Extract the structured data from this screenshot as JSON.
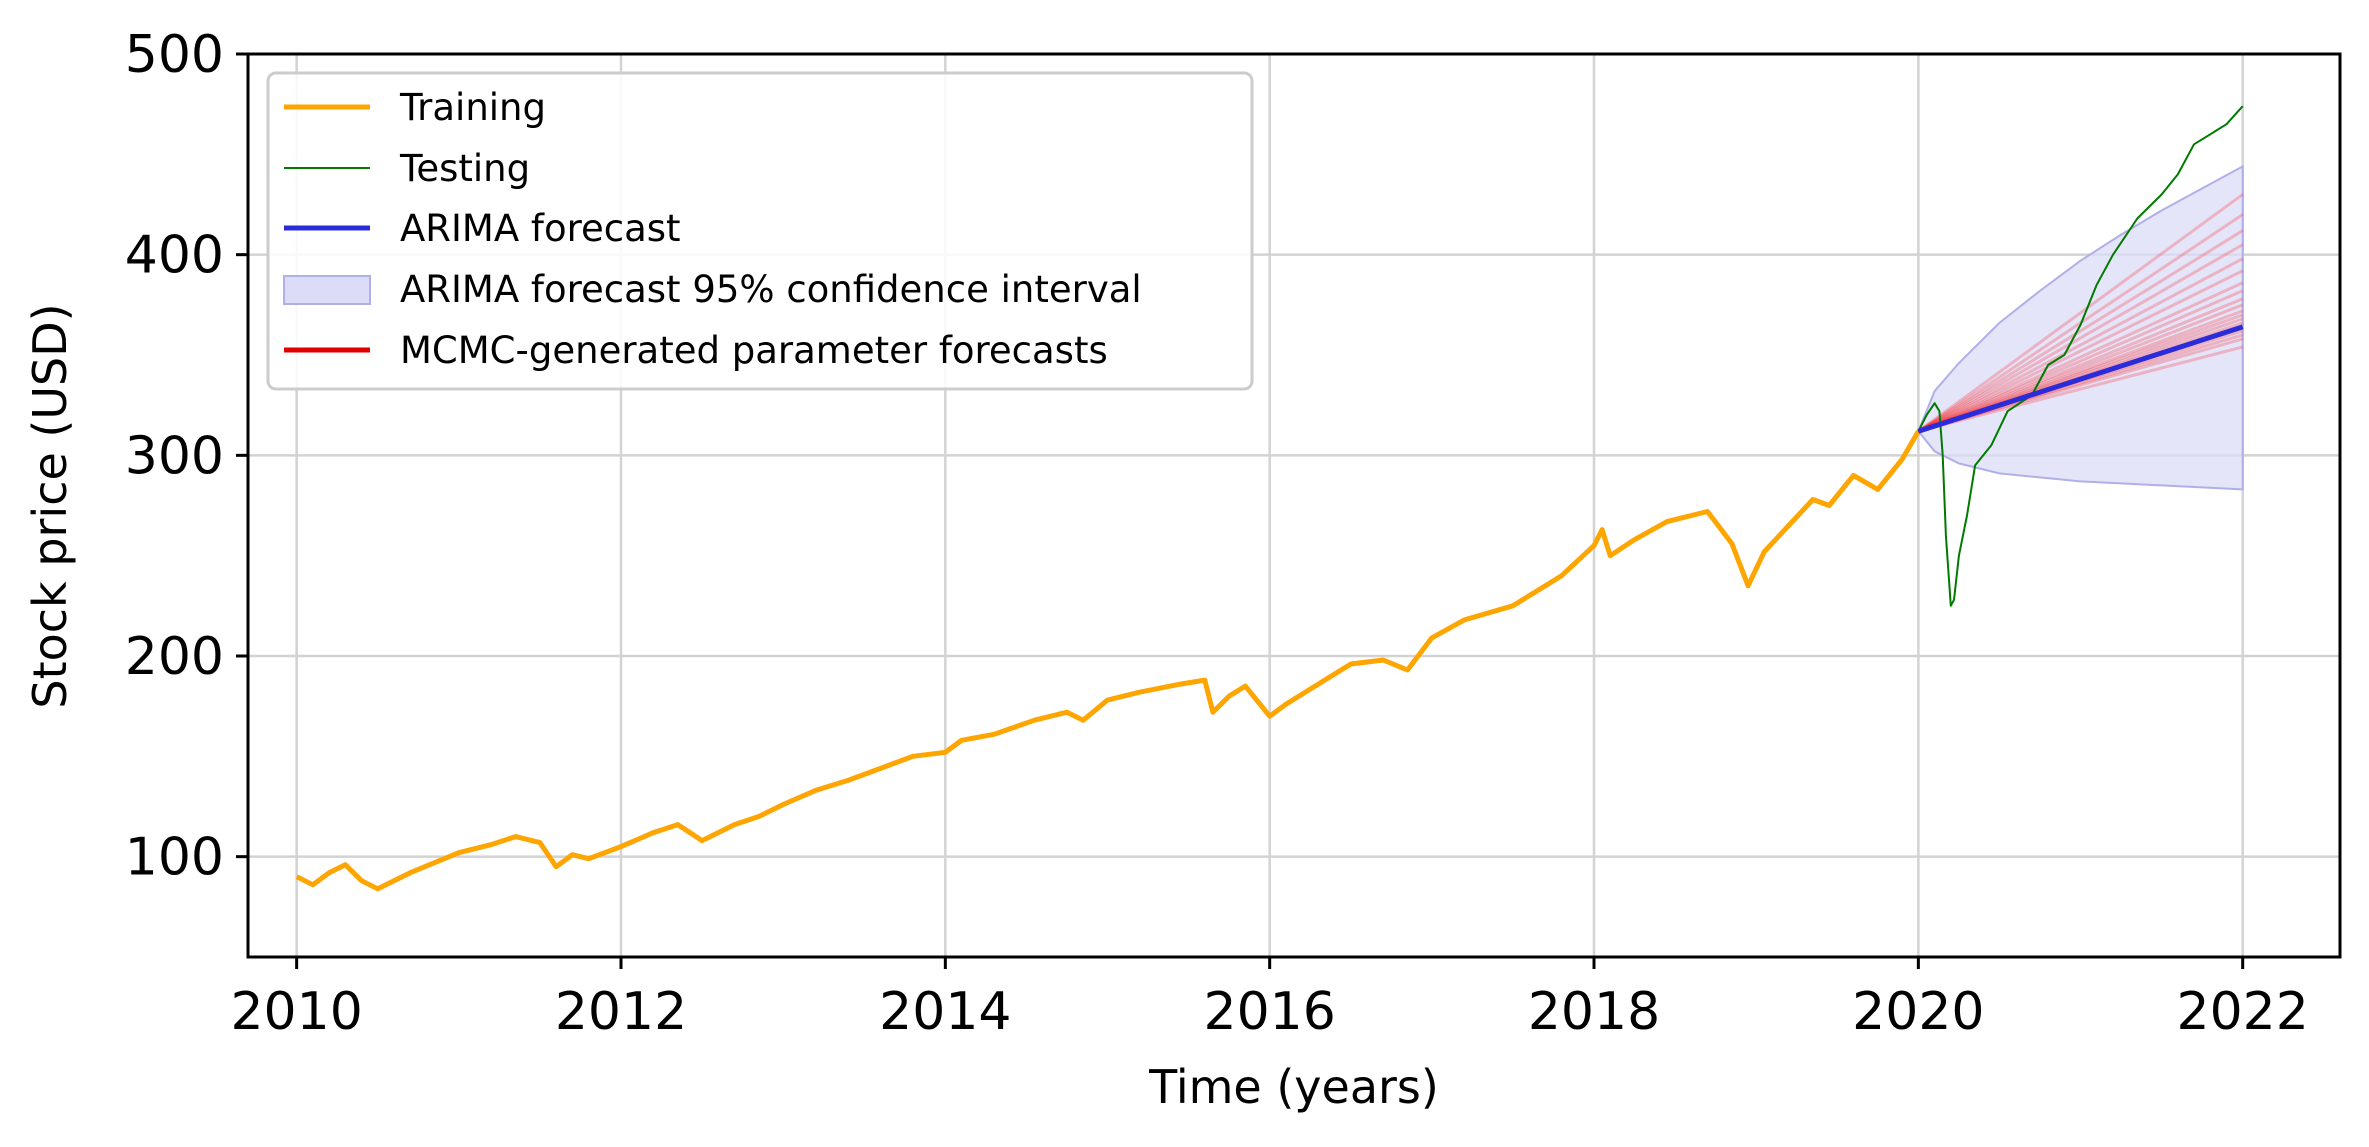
{
  "chart_data": {
    "type": "line",
    "title": "",
    "xlabel": "Time (years)",
    "ylabel": "Stock price (USD)",
    "xlim": [
      2009.7,
      2022.6
    ],
    "ylim": [
      50,
      500
    ],
    "xticks": [
      2010,
      2012,
      2014,
      2016,
      2018,
      2020,
      2022
    ],
    "yticks": [
      100,
      200,
      300,
      400,
      500
    ],
    "grid": true,
    "legend_position": "upper-left",
    "colors": {
      "training": "#ffa500",
      "testing": "#007a00",
      "arima": "#2b2bd9",
      "ci_fill": "#dcdcf7",
      "ci_edge": "#b0b0e8",
      "mcmc": "#ff0000"
    },
    "series": [
      {
        "name": "Training",
        "x": [
          2010.0,
          2010.1,
          2010.2,
          2010.3,
          2010.4,
          2010.5,
          2010.6,
          2010.7,
          2010.85,
          2011.0,
          2011.2,
          2011.35,
          2011.5,
          2011.6,
          2011.7,
          2011.8,
          2012.0,
          2012.2,
          2012.35,
          2012.5,
          2012.7,
          2012.85,
          2013.0,
          2013.2,
          2013.4,
          2013.6,
          2013.8,
          2014.0,
          2014.1,
          2014.3,
          2014.55,
          2014.75,
          2014.85,
          2015.0,
          2015.2,
          2015.45,
          2015.6,
          2015.65,
          2015.75,
          2015.85,
          2016.0,
          2016.1,
          2016.3,
          2016.5,
          2016.7,
          2016.85,
          2017.0,
          2017.2,
          2017.5,
          2017.8,
          2018.0,
          2018.05,
          2018.1,
          2018.25,
          2018.45,
          2018.7,
          2018.85,
          2018.95,
          2019.05,
          2019.2,
          2019.35,
          2019.45,
          2019.6,
          2019.75,
          2019.9,
          2020.0
        ],
        "values": [
          90,
          86,
          92,
          96,
          88,
          84,
          88,
          92,
          97,
          102,
          106,
          110,
          107,
          95,
          101,
          99,
          105,
          112,
          116,
          108,
          116,
          120,
          126,
          133,
          138,
          144,
          150,
          152,
          158,
          161,
          168,
          172,
          168,
          178,
          182,
          186,
          188,
          172,
          180,
          185,
          170,
          176,
          186,
          196,
          198,
          193,
          209,
          218,
          225,
          240,
          255,
          263,
          250,
          258,
          267,
          272,
          256,
          235,
          252,
          265,
          278,
          275,
          290,
          283,
          298,
          312
        ]
      },
      {
        "name": "Testing",
        "x": [
          2020.0,
          2020.05,
          2020.1,
          2020.13,
          2020.15,
          2020.17,
          2020.2,
          2020.22,
          2020.25,
          2020.3,
          2020.35,
          2020.45,
          2020.55,
          2020.7,
          2020.8,
          2020.9,
          2021.0,
          2021.1,
          2021.2,
          2021.35,
          2021.5,
          2021.6,
          2021.7,
          2021.8,
          2021.9,
          2022.0
        ],
        "values": [
          312,
          320,
          326,
          322,
          300,
          260,
          225,
          228,
          250,
          270,
          295,
          305,
          322,
          330,
          345,
          350,
          365,
          385,
          400,
          418,
          430,
          440,
          455,
          460,
          465,
          474
        ]
      },
      {
        "name": "ARIMA forecast",
        "x": [
          2020.0,
          2022.0
        ],
        "values": [
          312,
          364
        ]
      }
    ],
    "confidence_interval": {
      "name": "ARIMA forecast 95% confidence interval",
      "x": [
        2020.0,
        2020.1,
        2020.25,
        2020.5,
        2020.75,
        2021.0,
        2021.25,
        2021.5,
        2021.75,
        2022.0
      ],
      "upper": [
        312,
        332,
        346,
        366,
        382,
        397,
        410,
        422,
        433,
        444
      ],
      "lower": [
        312,
        302,
        296,
        291,
        289,
        287,
        286,
        285,
        284,
        283
      ]
    },
    "mcmc_forecasts": {
      "name": "MCMC-generated parameter forecasts",
      "start": [
        2020.0,
        312
      ],
      "end_x": 2022.0,
      "end_values": [
        354,
        358,
        360,
        362,
        364,
        366,
        368,
        370,
        372,
        375,
        378,
        382,
        386,
        392,
        398,
        405,
        412,
        420,
        430
      ]
    }
  },
  "legend": {
    "training": "Training",
    "testing": "Testing",
    "arima": "ARIMA forecast",
    "ci": "ARIMA forecast 95% confidence interval",
    "mcmc": "MCMC-generated parameter forecasts"
  }
}
